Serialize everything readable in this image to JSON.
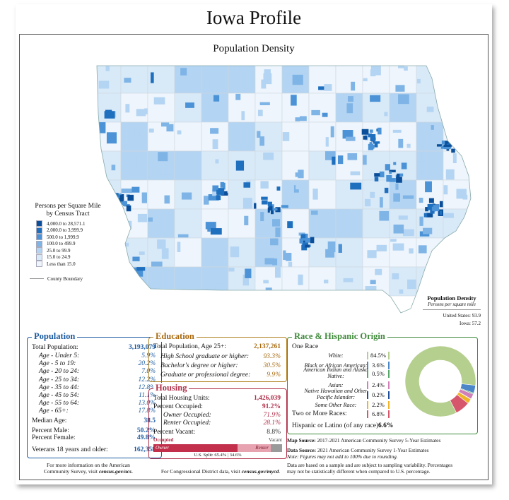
{
  "title": "Iowa Profile",
  "map": {
    "title": "Population Density",
    "legend": {
      "title_line1": "Persons per Square Mile",
      "title_line2": "by Census Tract",
      "classes": [
        {
          "label": "4,000.0 to 28,571.1",
          "color": "#0b4f9a"
        },
        {
          "label": "2,000.0 to 3,999.9",
          "color": "#1f6fbf"
        },
        {
          "label": "500.0 to 1,999.9",
          "color": "#4b93d6"
        },
        {
          "label": "100.0 to 499.9",
          "color": "#7fb4e6"
        },
        {
          "label": "25.0 to 99.9",
          "color": "#b3d4f2"
        },
        {
          "label": "15.0 to 24.9",
          "color": "#d8e9f8"
        },
        {
          "label": "Less than 15.0",
          "color": "#eef5fc"
        }
      ],
      "county_boundary": "County Boundary"
    },
    "density_box": {
      "title": "Population Density",
      "subtitle": "Persons per square mile",
      "us_label": "United States:",
      "us_value": "93.9",
      "state_label": "Iowa:",
      "state_value": "57.2"
    }
  },
  "population": {
    "heading": "Population",
    "total_label": "Total Population:",
    "total_value": "3,193,079",
    "ages": [
      {
        "label": "Age - Under 5:",
        "value": "5.9%"
      },
      {
        "label": "Age - 5 to 19:",
        "value": "20.2%"
      },
      {
        "label": "Age - 20 to 24:",
        "value": "7.0%"
      },
      {
        "label": "Age - 25 to 34:",
        "value": "12.2%"
      },
      {
        "label": "Age - 35 to 44:",
        "value": "12.8%"
      },
      {
        "label": "Age - 45 to 54:",
        "value": "11.1%"
      },
      {
        "label": "Age - 55 to 64:",
        "value": "13.0%"
      },
      {
        "label": "Age - 65+:",
        "value": "17.8%"
      }
    ],
    "median_label": "Median Age:",
    "median_value": "38.5",
    "male_label": "Percent Male:",
    "male_value": "50.2%",
    "female_label": "Percent Female:",
    "female_value": "49.8%",
    "veterans_label": "Veterans 18 years and older:",
    "veterans_value": "162,358"
  },
  "education": {
    "heading": "Education",
    "total_label": "Total Population, Age 25+:",
    "total_value": "2,137,261",
    "items": [
      {
        "label": "High School  graduate or higher:",
        "value": "93.3%"
      },
      {
        "label": "Bachelor's degree or higher:",
        "value": "30.5%"
      },
      {
        "label": "Graduate or professional degree:",
        "value": "9.9%"
      }
    ]
  },
  "housing": {
    "heading": "Housing",
    "units_label": "Total Housing Units:",
    "units_value": "1,426,039",
    "occupied_label": "Percent Occupied:",
    "occupied_value": "91.2%",
    "owner_label": "Owner Occupied:",
    "owner_value": "71.9%",
    "renter_label": "Renter Occupied:",
    "renter_value": "28.1%",
    "vacant_label": "Percent Vacant:",
    "vacant_value": "8.8%",
    "bar": {
      "occupied_label": "Occupied",
      "vacant_label": "Vacant",
      "owner_label": "Owner",
      "renter_label": "Renter",
      "split_label": "U.S. Split: 65.4%",
      "split_right": "34.6%",
      "owner_pct": 65.6,
      "renter_pct": 25.6,
      "vacant_pct": 8.8
    }
  },
  "race": {
    "heading": "Race & Hispanic Origin",
    "one_race_label": "One Race",
    "items": [
      {
        "label": "White:",
        "value": "84.5%",
        "color": "#b5cf8e",
        "pct": 84.5
      },
      {
        "label": "Black or African American:",
        "value": "3.6%",
        "color": "#4a86c8",
        "pct": 3.6
      },
      {
        "label": "American Indian and Alaska Native:",
        "value": "0.5%",
        "color": "#55a868",
        "pct": 0.5
      },
      {
        "label": "Asian:",
        "value": "2.4%",
        "color": "#d07fb8",
        "pct": 2.4
      },
      {
        "label": "Native Hawaiian and Other Pacific Islander:",
        "value": "0.2%",
        "color": "#1f4e9a",
        "pct": 0.2
      },
      {
        "label": "Some Other Race:",
        "value": "2.2%",
        "color": "#f0b429",
        "pct": 2.2
      },
      {
        "label": "Two or More Races:",
        "value": "6.8%",
        "color": "#d6576b",
        "pct": 6.8
      }
    ],
    "hispanic_label": "Hispanic or Latino (of any race):",
    "hispanic_value": "6.6%"
  },
  "notes": {
    "acs_line1": "For more information on the American",
    "acs_line2": "Community Survey, visit",
    "acs_link": "census.gov/acs",
    "cd_text": "For Congressional District data, visit",
    "cd_link": "census.gov/mycd",
    "map_source_label": "Map Source:",
    "map_source": "2017-2021 American Community Survey 5-Year Estimates",
    "data_source_label": "Data Source:",
    "data_source": "2021 American Community Survey 1-Year Estimates",
    "note": "Note: Figures may not add to 100% due to rounding.",
    "disclaimer_line1": "Data are based on a sample and are subject to sampling variability. Percentages",
    "disclaimer_line2": "may not be statistically different when compared to U.S. percentage."
  }
}
